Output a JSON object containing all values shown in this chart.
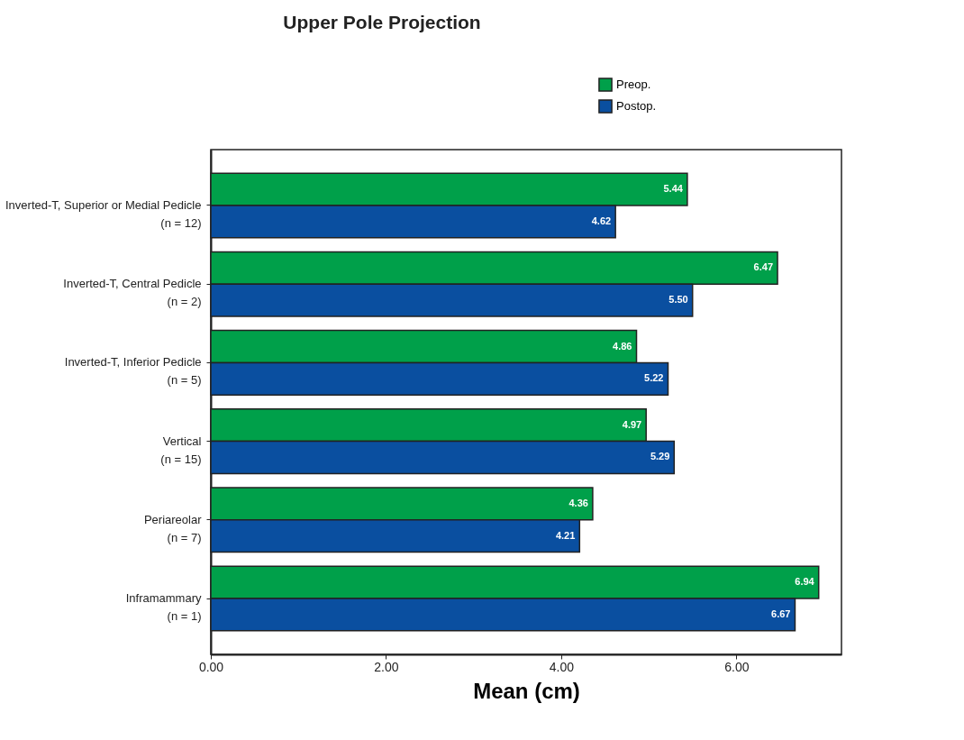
{
  "chart_data": {
    "type": "bar",
    "orientation": "horizontal",
    "title": "Upper Pole Projection",
    "xlabel": "Mean (cm)",
    "categories": [
      "Inverted-T, Superior or Medial Pedicle\n(n = 12)",
      "Inverted-T, Central Pedicle\n(n = 2)",
      "Inverted-T, Inferior Pedicle\n(n = 5)",
      "Vertical\n(n = 15)",
      "Periareolar\n(n = 7)",
      "Inframammary\n(n = 1)"
    ],
    "series": [
      {
        "name": "Preop.",
        "color": "#00a04a",
        "values": [
          5.44,
          6.47,
          4.86,
          4.97,
          4.36,
          6.94
        ]
      },
      {
        "name": "Postop.",
        "color": "#0a4fa0",
        "values": [
          4.62,
          5.5,
          5.22,
          5.29,
          4.21,
          6.67
        ]
      }
    ],
    "xlim": [
      0,
      7.2
    ],
    "xticks": [
      {
        "value": 0,
        "label": "0.00"
      },
      {
        "value": 2,
        "label": "2.00"
      },
      {
        "value": 4,
        "label": "4.00"
      },
      {
        "value": 6,
        "label": "6.00"
      }
    ],
    "value_labels": [
      [
        "5.44",
        "6.47",
        "4.86",
        "4.97",
        "4.36",
        "6.94"
      ],
      [
        "4.62",
        "5.50",
        "5.22",
        "5.29",
        "4.21",
        "6.67"
      ]
    ],
    "grid": false,
    "legend": "top right"
  }
}
